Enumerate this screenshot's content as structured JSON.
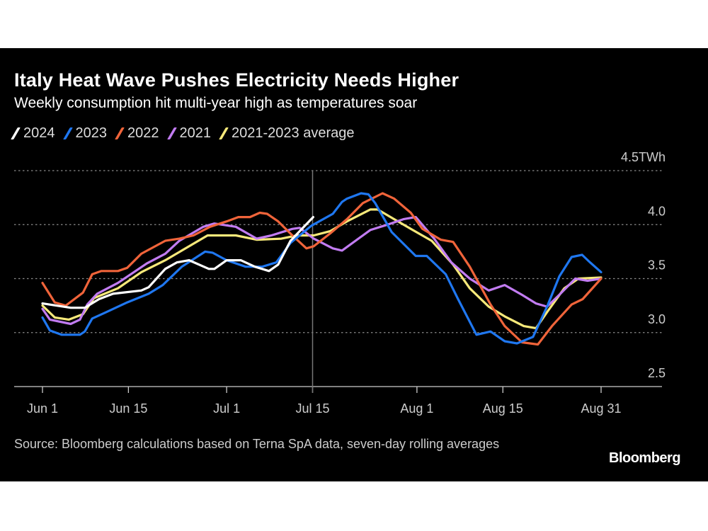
{
  "chart_data": {
    "type": "line",
    "title": "Italy Heat Wave Pushes Electricity Needs Higher",
    "subtitle": "Weekly consumption hit multi-year high as temperatures soar",
    "xlabel": "",
    "ylabel": "TWh",
    "x_unit": "days since Jun 1",
    "xlim": [
      0,
      91
    ],
    "ylim": [
      2.5,
      4.5
    ],
    "y_ticks": [
      {
        "value": 4.5,
        "label": "4.5TWh"
      },
      {
        "value": 4.0,
        "label": "4.0"
      },
      {
        "value": 3.5,
        "label": "3.5"
      },
      {
        "value": 3.0,
        "label": "3.0"
      },
      {
        "value": 2.5,
        "label": "2.5"
      }
    ],
    "x_ticks": [
      {
        "value": 0,
        "label": "Jun 1"
      },
      {
        "value": 14,
        "label": "Jun 15"
      },
      {
        "value": 30,
        "label": "Jul 1"
      },
      {
        "value": 44,
        "label": "Jul 15"
      },
      {
        "value": 61,
        "label": "Aug 1"
      },
      {
        "value": 75,
        "label": "Aug 15"
      },
      {
        "value": 91,
        "label": "Aug 31"
      }
    ],
    "reference_line_x": 44,
    "grid": true,
    "legend_position": "top-left",
    "series": [
      {
        "name": "2021-2023 average",
        "color": "#f7e97a",
        "points": [
          [
            0,
            3.25
          ],
          [
            2,
            3.14
          ],
          [
            4.3,
            3.12
          ],
          [
            6.6,
            3.17
          ],
          [
            8.4,
            3.32
          ],
          [
            12.3,
            3.41
          ],
          [
            16.1,
            3.56
          ],
          [
            20,
            3.67
          ],
          [
            23.9,
            3.8
          ],
          [
            26.9,
            3.9
          ],
          [
            31.5,
            3.9
          ],
          [
            34.9,
            3.86
          ],
          [
            38.9,
            3.87
          ],
          [
            41.5,
            3.9
          ],
          [
            44.2,
            3.9
          ],
          [
            46.9,
            3.94
          ],
          [
            49.6,
            4.03
          ],
          [
            53.4,
            4.14
          ],
          [
            54.6,
            4.14
          ],
          [
            57.3,
            4.05
          ],
          [
            60,
            3.96
          ],
          [
            63.4,
            3.85
          ],
          [
            66.9,
            3.63
          ],
          [
            69.6,
            3.41
          ],
          [
            72.7,
            3.24
          ],
          [
            75.3,
            3.15
          ],
          [
            78.4,
            3.06
          ],
          [
            80.4,
            3.04
          ],
          [
            82.2,
            3.19
          ],
          [
            85,
            3.41
          ],
          [
            87.3,
            3.5
          ],
          [
            91,
            3.51
          ]
        ]
      },
      {
        "name": "2021",
        "color": "#c27cf2",
        "points": [
          [
            0,
            3.22
          ],
          [
            1.2,
            3.12
          ],
          [
            4.6,
            3.08
          ],
          [
            6.1,
            3.12
          ],
          [
            7.3,
            3.26
          ],
          [
            8.9,
            3.36
          ],
          [
            12.3,
            3.46
          ],
          [
            17,
            3.64
          ],
          [
            20,
            3.73
          ],
          [
            22.3,
            3.85
          ],
          [
            26.2,
            3.98
          ],
          [
            28,
            4.01
          ],
          [
            31.5,
            3.98
          ],
          [
            34.9,
            3.87
          ],
          [
            37.3,
            3.9
          ],
          [
            40.7,
            3.96
          ],
          [
            41.9,
            3.97
          ],
          [
            44.2,
            3.87
          ],
          [
            47.3,
            3.78
          ],
          [
            48.8,
            3.76
          ],
          [
            53.4,
            3.95
          ],
          [
            56.2,
            4.0
          ],
          [
            58.8,
            4.05
          ],
          [
            60.8,
            4.07
          ],
          [
            63.8,
            3.87
          ],
          [
            66.6,
            3.65
          ],
          [
            69.6,
            3.5
          ],
          [
            72.7,
            3.39
          ],
          [
            75.3,
            3.44
          ],
          [
            78.1,
            3.35
          ],
          [
            80.4,
            3.27
          ],
          [
            82.2,
            3.24
          ],
          [
            84.2,
            3.35
          ],
          [
            86.8,
            3.5
          ],
          [
            88.8,
            3.48
          ],
          [
            91,
            3.5
          ]
        ]
      },
      {
        "name": "2022",
        "color": "#f0643a",
        "points": [
          [
            0,
            3.46
          ],
          [
            2,
            3.28
          ],
          [
            3.8,
            3.25
          ],
          [
            6.6,
            3.37
          ],
          [
            8.1,
            3.54
          ],
          [
            9.6,
            3.57
          ],
          [
            12.3,
            3.57
          ],
          [
            13.8,
            3.6
          ],
          [
            16.1,
            3.73
          ],
          [
            20,
            3.85
          ],
          [
            22.3,
            3.87
          ],
          [
            24.6,
            3.9
          ],
          [
            27.3,
            3.98
          ],
          [
            30,
            4.03
          ],
          [
            31.9,
            4.07
          ],
          [
            33.8,
            4.07
          ],
          [
            35.4,
            4.11
          ],
          [
            36.6,
            4.1
          ],
          [
            38.4,
            4.03
          ],
          [
            40.7,
            3.9
          ],
          [
            43,
            3.78
          ],
          [
            44.2,
            3.8
          ],
          [
            46.9,
            3.92
          ],
          [
            49.6,
            4.05
          ],
          [
            52.2,
            4.2
          ],
          [
            55.4,
            4.29
          ],
          [
            57.3,
            4.24
          ],
          [
            60,
            4.11
          ],
          [
            61.9,
            3.96
          ],
          [
            64.9,
            3.86
          ],
          [
            66.9,
            3.84
          ],
          [
            69.6,
            3.61
          ],
          [
            73,
            3.26
          ],
          [
            75.3,
            3.06
          ],
          [
            78.1,
            2.91
          ],
          [
            80.7,
            2.89
          ],
          [
            83,
            3.06
          ],
          [
            86.2,
            3.26
          ],
          [
            88,
            3.31
          ],
          [
            91,
            3.5
          ]
        ]
      },
      {
        "name": "2023",
        "color": "#1f77f0",
        "points": [
          [
            0,
            3.14
          ],
          [
            1.2,
            3.02
          ],
          [
            3.1,
            2.98
          ],
          [
            6.1,
            2.98
          ],
          [
            6.9,
            3.01
          ],
          [
            8.1,
            3.13
          ],
          [
            10.4,
            3.19
          ],
          [
            13.8,
            3.28
          ],
          [
            17.3,
            3.36
          ],
          [
            19.6,
            3.44
          ],
          [
            22.7,
            3.61
          ],
          [
            26.5,
            3.75
          ],
          [
            27.7,
            3.74
          ],
          [
            30,
            3.67
          ],
          [
            33.1,
            3.61
          ],
          [
            35.8,
            3.61
          ],
          [
            38.1,
            3.65
          ],
          [
            40.4,
            3.83
          ],
          [
            43.8,
            3.99
          ],
          [
            47.3,
            4.1
          ],
          [
            49.6,
            4.24
          ],
          [
            48.8,
            4.21
          ],
          [
            51.9,
            4.29
          ],
          [
            53.1,
            4.28
          ],
          [
            54.2,
            4.2
          ],
          [
            56.9,
            3.93
          ],
          [
            60.8,
            3.71
          ],
          [
            62.6,
            3.71
          ],
          [
            65.7,
            3.54
          ],
          [
            67.7,
            3.31
          ],
          [
            70.7,
            2.98
          ],
          [
            73,
            3.01
          ],
          [
            75.3,
            2.92
          ],
          [
            77.3,
            2.9
          ],
          [
            79.9,
            2.96
          ],
          [
            82.2,
            3.24
          ],
          [
            84.2,
            3.52
          ],
          [
            86.2,
            3.7
          ],
          [
            87.9,
            3.72
          ],
          [
            89.2,
            3.65
          ],
          [
            91,
            3.56
          ]
        ]
      },
      {
        "name": "2024",
        "color": "#ffffff",
        "points": [
          [
            0,
            3.27
          ],
          [
            4.6,
            3.23
          ],
          [
            6.9,
            3.23
          ],
          [
            9.2,
            3.31
          ],
          [
            11.5,
            3.36
          ],
          [
            16.1,
            3.39
          ],
          [
            17.3,
            3.42
          ],
          [
            20,
            3.59
          ],
          [
            21.9,
            3.65
          ],
          [
            23.9,
            3.67
          ],
          [
            27.1,
            3.59
          ],
          [
            28,
            3.59
          ],
          [
            30,
            3.67
          ],
          [
            32.3,
            3.67
          ],
          [
            34.6,
            3.61
          ],
          [
            36.9,
            3.57
          ],
          [
            38.4,
            3.63
          ],
          [
            40.4,
            3.85
          ],
          [
            44.1,
            4.07
          ]
        ]
      }
    ],
    "legend": [
      {
        "name": "2024",
        "color": "#ffffff"
      },
      {
        "name": "2023",
        "color": "#1f77f0"
      },
      {
        "name": "2022",
        "color": "#f0643a"
      },
      {
        "name": "2021",
        "color": "#c27cf2"
      },
      {
        "name": "2021-2023 average",
        "color": "#f7e97a"
      }
    ],
    "source": "Source: Bloomberg calculations based on Terna SpA data, seven-day rolling averages",
    "brand": "Bloomberg"
  }
}
